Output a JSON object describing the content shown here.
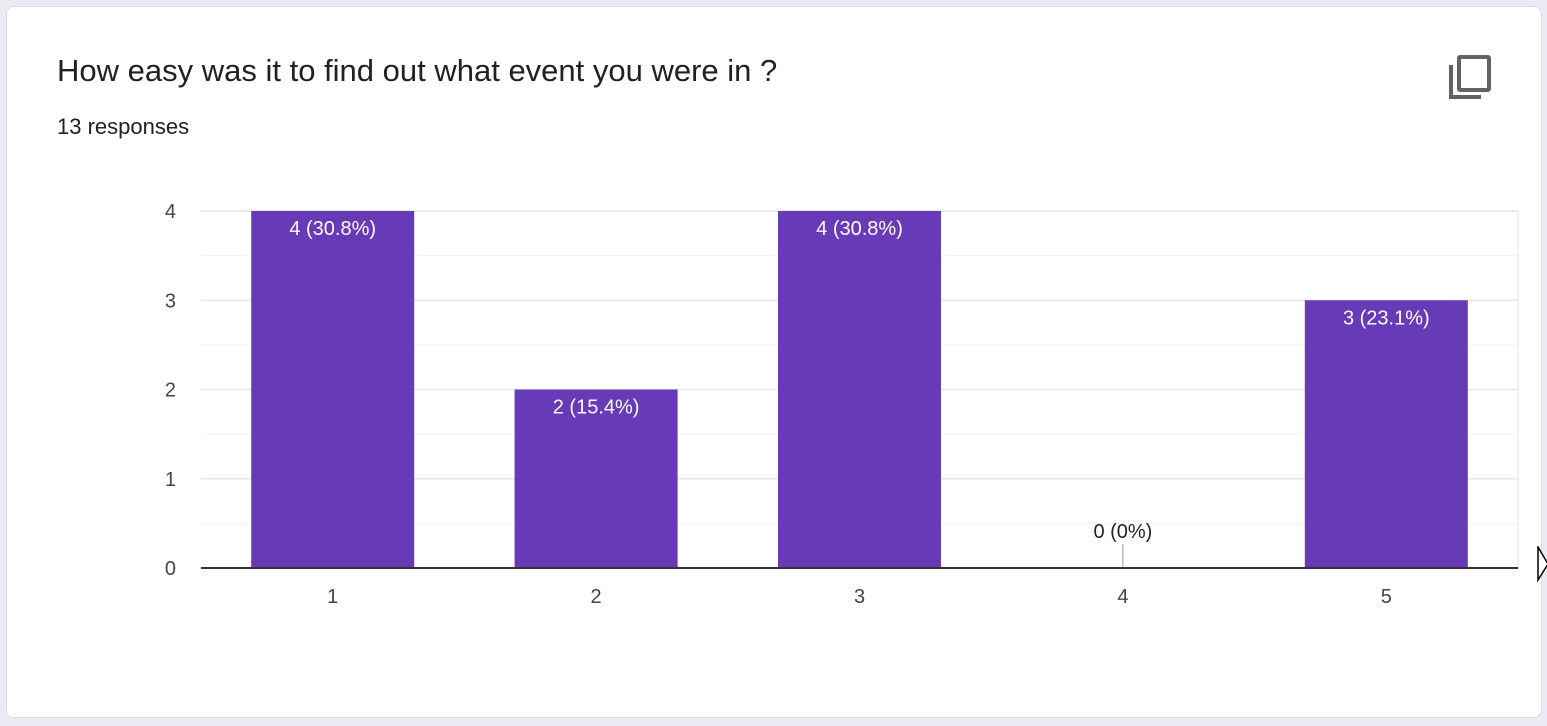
{
  "question": {
    "title": "How easy was it to find out what event you were in ?",
    "responses": "13 responses"
  },
  "toolbar": {
    "copy_icon": "copy-icon"
  },
  "colors": {
    "bar": "#673ab7",
    "grid": "#e6e6e6",
    "minor_grid": "#f3f3f3",
    "axis": "#333333",
    "label_inside": "#ffffff",
    "label_outside": "#222222",
    "tick": "#444444"
  },
  "chart_data": {
    "type": "bar",
    "title": "",
    "xlabel": "",
    "ylabel": "",
    "categories": [
      "1",
      "2",
      "3",
      "4",
      "5"
    ],
    "values": [
      4,
      2,
      4,
      0,
      3
    ],
    "data_labels": [
      "4 (30.8%)",
      "2 (15.4%)",
      "4 (30.8%)",
      "0 (0%)",
      "3 (23.1%)"
    ],
    "y_ticks": [
      "0",
      "1",
      "2",
      "3",
      "4"
    ],
    "ylim": [
      0,
      4
    ],
    "grid": true,
    "legend": "none"
  }
}
